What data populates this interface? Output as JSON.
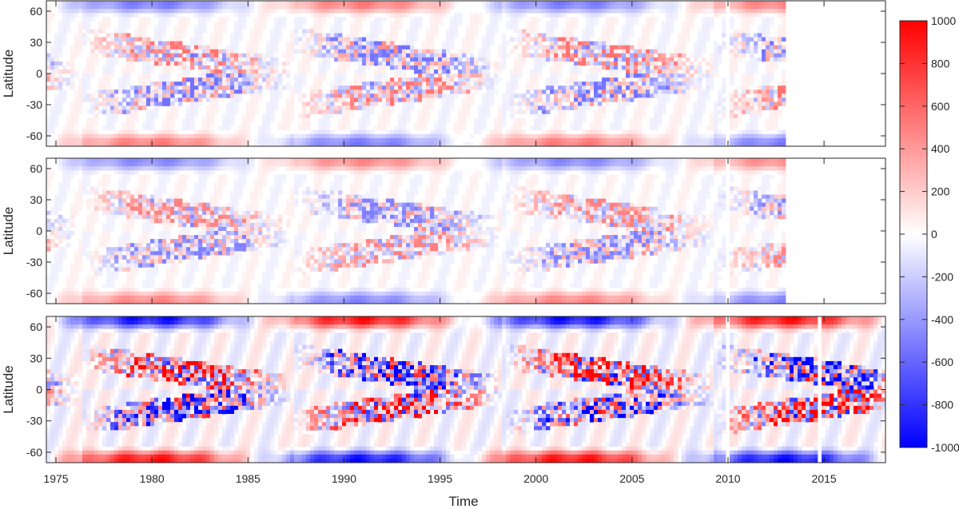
{
  "chart_data": {
    "type": "heatmap",
    "panels": [
      {
        "ylabel": "Latitude",
        "yticks": [
          -60,
          -30,
          0,
          30,
          60
        ],
        "ylim": [
          -70,
          70
        ],
        "xlim": [
          1974.5,
          2018.2
        ],
        "data_end": 2013.0,
        "gaps": [
          [
            2009.9,
            2010.1
          ]
        ],
        "intensity": 0.55
      },
      {
        "ylabel": "Latitude",
        "yticks": [
          -60,
          -30,
          0,
          30,
          60
        ],
        "ylim": [
          -70,
          70
        ],
        "xlim": [
          1974.5,
          2018.2
        ],
        "data_end": 2013.0,
        "gaps": [
          [
            2009.9,
            2010.1
          ]
        ],
        "intensity": 0.5
      },
      {
        "ylabel": "Latitude",
        "yticks": [
          -60,
          -30,
          0,
          30,
          60
        ],
        "ylim": [
          -70,
          70
        ],
        "xlim": [
          1974.5,
          2018.2
        ],
        "data_end": 2018.2,
        "gaps": [
          [
            2009.9,
            2010.1
          ],
          [
            2014.7,
            2014.8
          ],
          [
            2015.4,
            2015.5
          ],
          [
            2015.9,
            2016.0
          ]
        ],
        "intensity": 1.0
      }
    ],
    "xticks": [
      1975,
      1980,
      1985,
      1990,
      1995,
      2000,
      2005,
      2010,
      2015
    ],
    "xlabel": "Time",
    "colorbar": {
      "ticks": [
        1000,
        800,
        600,
        400,
        200,
        0,
        -200,
        -400,
        -600,
        -800,
        -1000
      ],
      "range": [
        -1000,
        1000
      ],
      "colors": [
        "#0000ff",
        "#ffffff",
        "#ff0000"
      ]
    },
    "grid": false,
    "legend": "colorbar-right"
  }
}
